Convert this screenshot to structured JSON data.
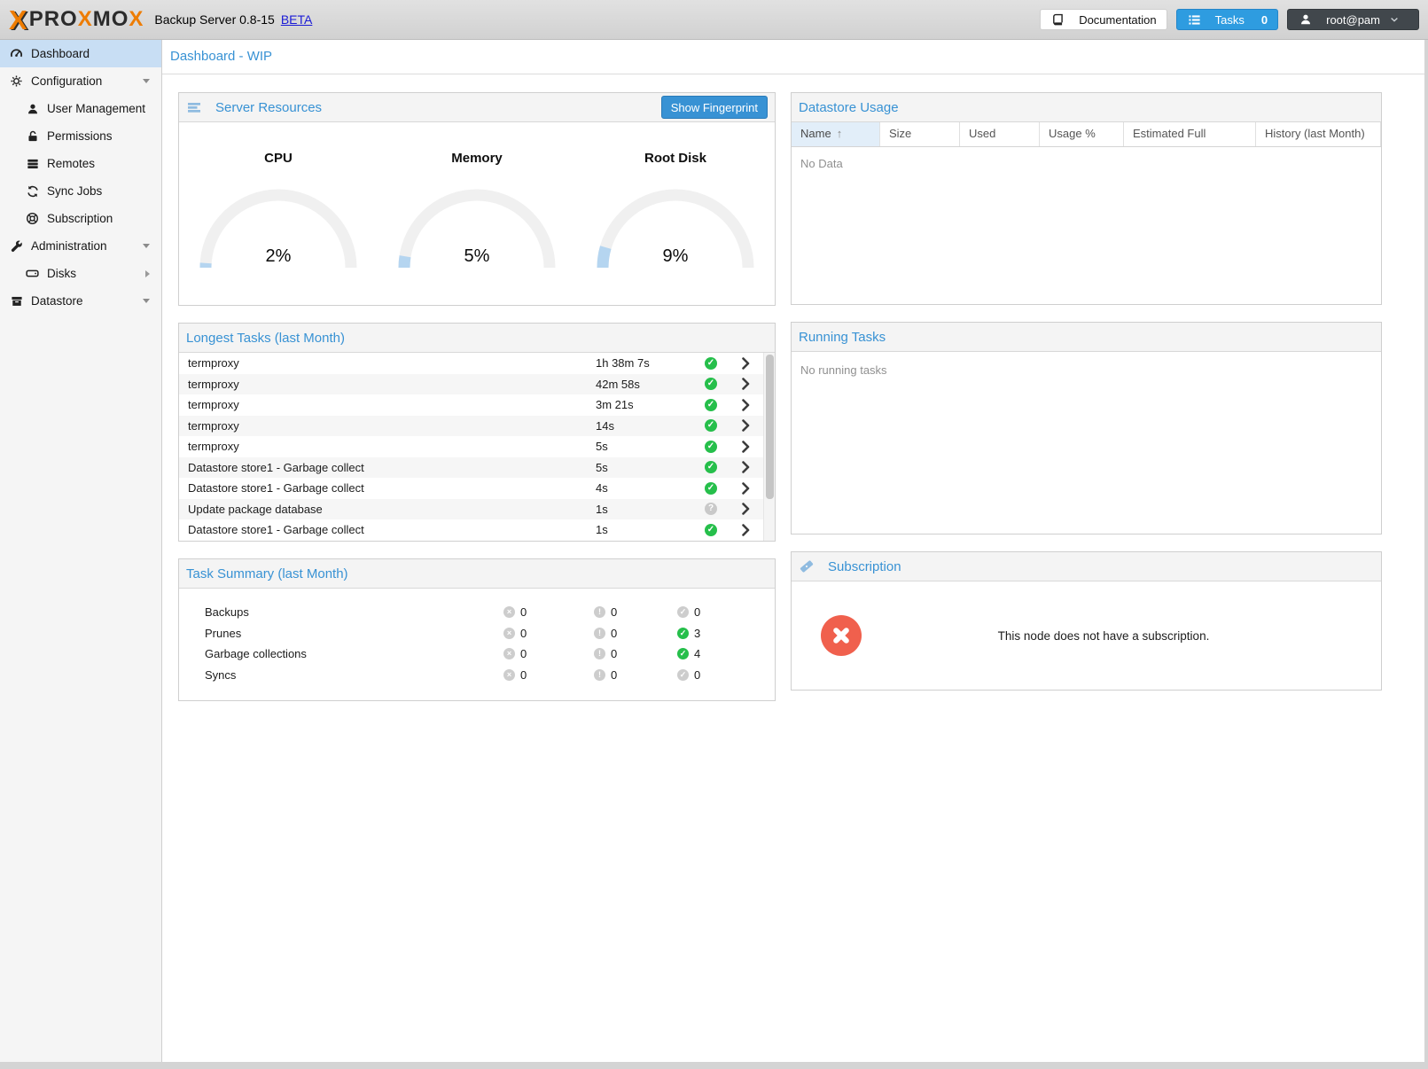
{
  "topbar": {
    "logo_mark": "X",
    "logo_parts": [
      {
        "text": "PRO",
        "color": "dark"
      },
      {
        "text": "X",
        "color": "orange"
      },
      {
        "text": "MO",
        "color": "dark"
      },
      {
        "text": "X",
        "color": "orange"
      }
    ],
    "product": "Backup Server 0.8-15",
    "beta_link": "BETA",
    "documentation_label": "Documentation",
    "tasks_label": "Tasks",
    "tasks_count": "0",
    "user_label": "root@pam"
  },
  "sidebar": {
    "items": [
      {
        "label": "Dashboard",
        "icon": "dashboard-icon",
        "level": 0,
        "selected": true,
        "arrow": null
      },
      {
        "label": "Configuration",
        "icon": "gears-icon",
        "level": 0,
        "selected": false,
        "arrow": "down"
      },
      {
        "label": "User Management",
        "icon": "user-icon",
        "level": 1,
        "selected": false,
        "arrow": null
      },
      {
        "label": "Permissions",
        "icon": "unlock-icon",
        "level": 1,
        "selected": false,
        "arrow": null
      },
      {
        "label": "Remotes",
        "icon": "server-icon",
        "level": 1,
        "selected": false,
        "arrow": null
      },
      {
        "label": "Sync Jobs",
        "icon": "sync-icon",
        "level": 1,
        "selected": false,
        "arrow": null
      },
      {
        "label": "Subscription",
        "icon": "life-ring-icon",
        "level": 1,
        "selected": false,
        "arrow": null
      },
      {
        "label": "Administration",
        "icon": "wrench-icon",
        "level": 0,
        "selected": false,
        "arrow": "down"
      },
      {
        "label": "Disks",
        "icon": "hdd-icon",
        "level": 1,
        "selected": false,
        "arrow": "right"
      },
      {
        "label": "Datastore",
        "icon": "archive-icon",
        "level": 0,
        "selected": false,
        "arrow": "down"
      }
    ]
  },
  "main": {
    "title": "Dashboard - WIP",
    "server_resources": {
      "title": "Server Resources",
      "icon": "bars-icon",
      "fingerprint_button": "Show Fingerprint",
      "gauges": [
        {
          "label": "CPU",
          "percent": 2,
          "display": "2%"
        },
        {
          "label": "Memory",
          "percent": 5,
          "display": "5%"
        },
        {
          "label": "Root Disk",
          "percent": 9,
          "display": "9%"
        }
      ]
    },
    "datastore_usage": {
      "title": "Datastore Usage",
      "columns": [
        "Name",
        "Size",
        "Used",
        "Usage %",
        "Estimated Full",
        "History (last Month)"
      ],
      "sorted_column": "Name",
      "sort_direction": "asc",
      "empty_text": "No Data"
    },
    "longest_tasks": {
      "title": "Longest Tasks (last Month)",
      "rows": [
        {
          "name": "termproxy",
          "duration": "1h 38m 7s",
          "status": "ok"
        },
        {
          "name": "termproxy",
          "duration": "42m 58s",
          "status": "ok"
        },
        {
          "name": "termproxy",
          "duration": "3m 21s",
          "status": "ok"
        },
        {
          "name": "termproxy",
          "duration": "14s",
          "status": "ok"
        },
        {
          "name": "termproxy",
          "duration": "5s",
          "status": "ok"
        },
        {
          "name": "Datastore store1 - Garbage collect",
          "duration": "5s",
          "status": "ok"
        },
        {
          "name": "Datastore store1 - Garbage collect",
          "duration": "4s",
          "status": "ok"
        },
        {
          "name": "Update package database",
          "duration": "1s",
          "status": "unknown"
        },
        {
          "name": "Datastore store1 - Garbage collect",
          "duration": "1s",
          "status": "ok"
        }
      ]
    },
    "running_tasks": {
      "title": "Running Tasks",
      "empty_text": "No running tasks"
    },
    "task_summary": {
      "title": "Task Summary (last Month)",
      "rows": [
        {
          "label": "Backups",
          "error": "0",
          "warning": "0",
          "ok": "0",
          "ok_highlight": false
        },
        {
          "label": "Prunes",
          "error": "0",
          "warning": "0",
          "ok": "3",
          "ok_highlight": true
        },
        {
          "label": "Garbage collections",
          "error": "0",
          "warning": "0",
          "ok": "4",
          "ok_highlight": true
        },
        {
          "label": "Syncs",
          "error": "0",
          "warning": "0",
          "ok": "0",
          "ok_highlight": false
        }
      ]
    },
    "subscription": {
      "title": "Subscription",
      "icon": "ticket-icon",
      "status_icon": "times-circle-icon",
      "message": "This node does not have a subscription."
    }
  },
  "colors": {
    "accent_blue": "#3892d4",
    "button_blue": "#2e9ce0",
    "selected_blue": "#c8def4",
    "gauge_fill": "#b5d5f0",
    "success_green": "#26bf4b",
    "error_red": "#f0604d",
    "logo_orange": "#ee7c00"
  }
}
